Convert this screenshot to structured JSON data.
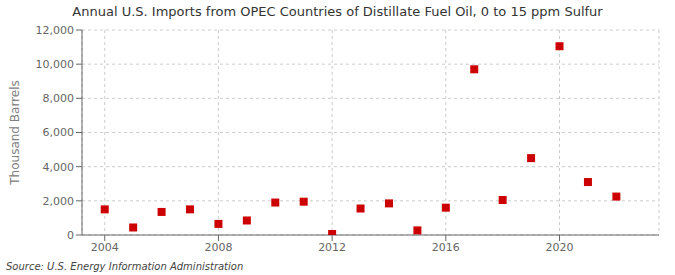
{
  "chart_data": {
    "type": "scatter",
    "title": "Annual U.S. Imports from OPEC Countries of Distillate Fuel Oil, 0 to 15 ppm Sulfur",
    "ylabel": "Thousand Barrels",
    "source": "Source: U.S. Energy Information Administration",
    "x": [
      2004,
      2005,
      2006,
      2007,
      2008,
      2009,
      2010,
      2011,
      2012,
      2013,
      2014,
      2015,
      2016,
      2017,
      2018,
      2019,
      2020,
      2021,
      2022
    ],
    "values": [
      1500,
      440,
      1350,
      1500,
      650,
      850,
      1900,
      1950,
      60,
      1550,
      1850,
      270,
      1600,
      9700,
      2050,
      4500,
      11050,
      3100,
      2250
    ],
    "color": "#cc0000",
    "marker": "square",
    "xlim": [
      2003.2,
      2023.5
    ],
    "xticks": [
      2004,
      2008,
      2012,
      2016,
      2020
    ],
    "ylim": [
      0,
      12000
    ],
    "yticks": [
      0,
      {
        "value": 2000,
        "label": "2,000"
      },
      {
        "value": 4000,
        "label": "4,000"
      },
      {
        "value": 6000,
        "label": "6,000"
      },
      {
        "value": 8000,
        "label": "8,000"
      },
      {
        "value": 10000,
        "label": "10,000"
      },
      {
        "value": 12000,
        "label": "12,000"
      }
    ],
    "grid": true
  }
}
